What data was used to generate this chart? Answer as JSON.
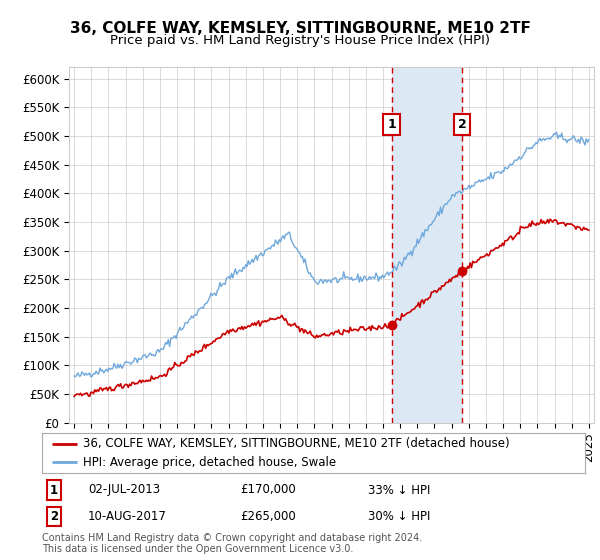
{
  "title": "36, COLFE WAY, KEMSLEY, SITTINGBOURNE, ME10 2TF",
  "subtitle": "Price paid vs. HM Land Registry's House Price Index (HPI)",
  "ytick_labels": [
    "£0",
    "£50K",
    "£100K",
    "£150K",
    "£200K",
    "£250K",
    "£300K",
    "£350K",
    "£400K",
    "£450K",
    "£500K",
    "£550K",
    "£600K"
  ],
  "yticks": [
    0,
    50000,
    100000,
    150000,
    200000,
    250000,
    300000,
    350000,
    400000,
    450000,
    500000,
    550000,
    600000
  ],
  "ylim": [
    0,
    620000
  ],
  "xlim_left": 1994.7,
  "xlim_right": 2025.3,
  "legend_line1": "36, COLFE WAY, KEMSLEY, SITTINGBOURNE, ME10 2TF (detached house)",
  "legend_line2": "HPI: Average price, detached house, Swale",
  "sale1_date_num": 2013.5,
  "sale1_price": 170000,
  "sale2_date_num": 2017.62,
  "sale2_price": 265000,
  "footer": "Contains HM Land Registry data © Crown copyright and database right 2024.\nThis data is licensed under the Open Government Licence v3.0.",
  "line_red_color": "#cc0000",
  "line_blue_color": "#6fa8dc",
  "shade_color": "#dce9f5",
  "vline_color": "#cc0000",
  "marker_box_color": "#cc0000",
  "grid_color": "#cccccc",
  "title_fontsize": 11,
  "subtitle_fontsize": 9.5,
  "tick_fontsize": 8.5,
  "legend_fontsize": 8.5,
  "table_fontsize": 8.5,
  "footer_fontsize": 7.0
}
